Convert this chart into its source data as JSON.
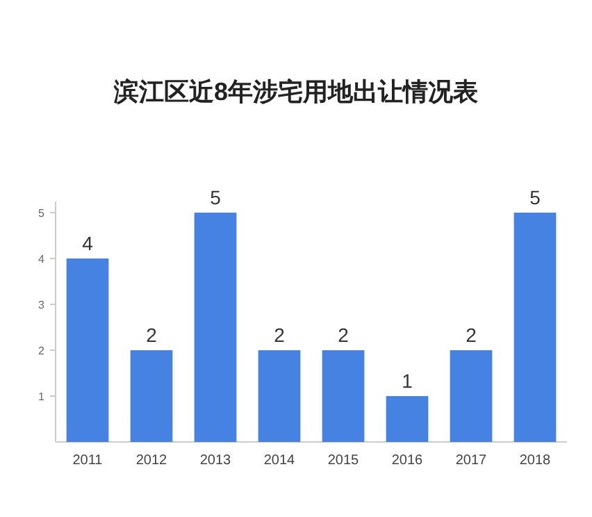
{
  "chart_data": {
    "type": "bar",
    "title": "滨江区近8年涉宅用地出让情况表",
    "categories": [
      "2011",
      "2012",
      "2013",
      "2014",
      "2015",
      "2016",
      "2017",
      "2018"
    ],
    "values": [
      4,
      2,
      5,
      2,
      2,
      1,
      2,
      5
    ],
    "color": "#4682e2",
    "ylim": [
      0,
      5
    ],
    "yticks": [
      1,
      2,
      3,
      4,
      5
    ],
    "grid": false,
    "data_labels": true
  }
}
